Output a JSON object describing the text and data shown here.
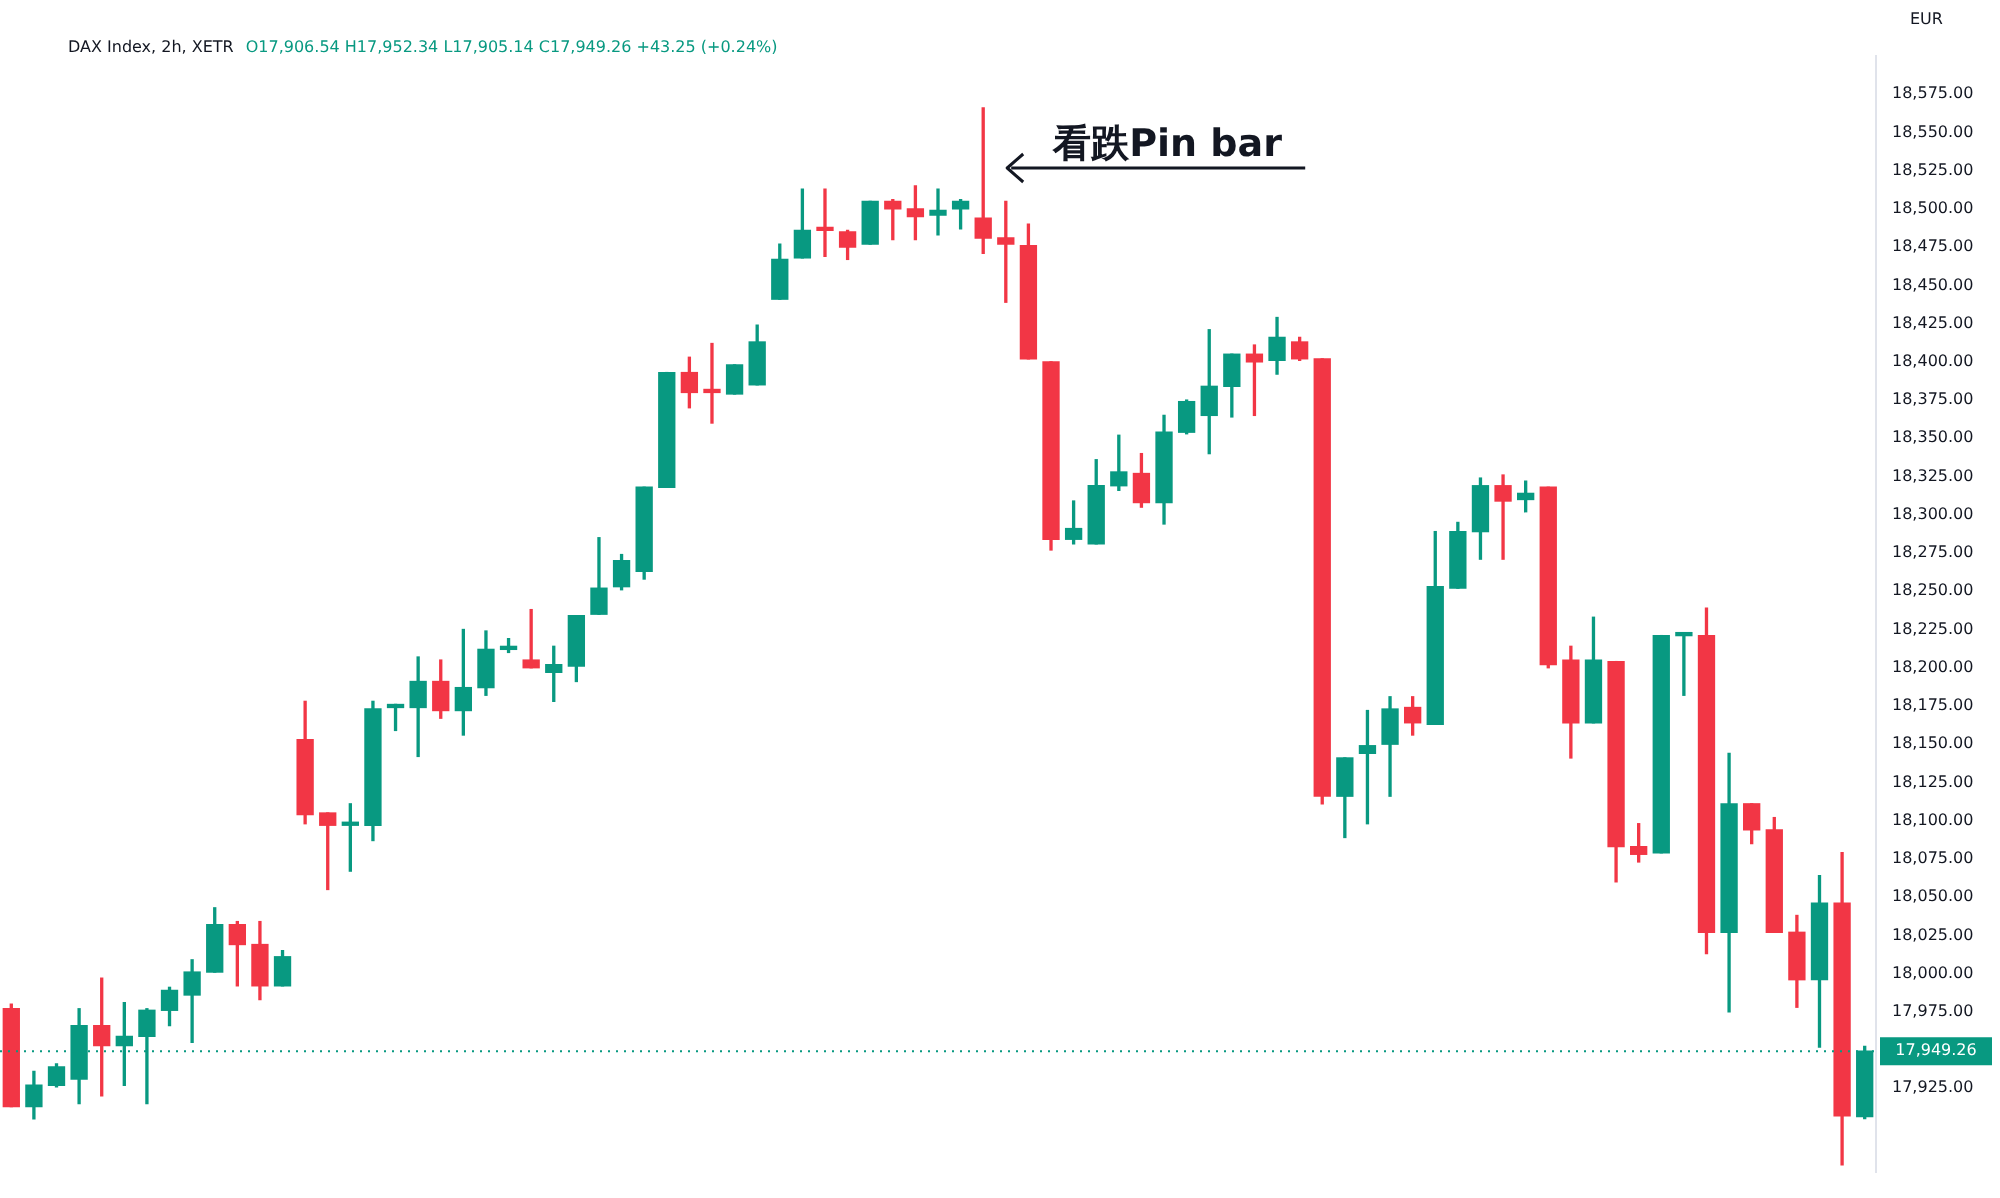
{
  "chart_data": {
    "type": "candlestick",
    "title": "DAX Index, 2h, XETR",
    "subtitle": "O17,906.54 H17,952.34 L17,905.14 C17,949.26 +43.25 (+0.24%)",
    "ylabel": "EUR",
    "categories": [
      null,
      null,
      null,
      null,
      null,
      null,
      null,
      null,
      null,
      null,
      null,
      null,
      null,
      null,
      null,
      null,
      null,
      null,
      null,
      null,
      null,
      null,
      null,
      null,
      null,
      null,
      null,
      null,
      null,
      null,
      null,
      null,
      null,
      null,
      null,
      null,
      null,
      null,
      null,
      null,
      null,
      null,
      null,
      null,
      null,
      null,
      null,
      null,
      null,
      null,
      null,
      null,
      null,
      null,
      null,
      null,
      null,
      null,
      null,
      null,
      null,
      null,
      null,
      null,
      null,
      null,
      null,
      null,
      null,
      null,
      null,
      null,
      null,
      null,
      null,
      null,
      null,
      null,
      null,
      null,
      null,
      null,
      null
    ],
    "ohlc": [
      [
        17977,
        17980,
        17913,
        17913
      ],
      [
        17913,
        17936,
        17905,
        17927
      ],
      [
        17927,
        17941,
        17926,
        17939
      ],
      [
        17931,
        17977,
        17915,
        17966
      ],
      [
        17966,
        17997,
        17920,
        17953
      ],
      [
        17953,
        17981,
        17927,
        17959
      ],
      [
        17959,
        17977,
        17915,
        17976
      ],
      [
        17976,
        17991,
        17966,
        17989
      ],
      [
        17986,
        18009,
        17955,
        18001
      ],
      [
        18001,
        18043,
        18001,
        18032
      ],
      [
        18032,
        18034,
        17992,
        18019
      ],
      [
        18019,
        18034,
        17983,
        17992
      ],
      [
        17992,
        18015,
        17992,
        18011
      ],
      [
        18153,
        18178,
        18098,
        18104
      ],
      [
        18105,
        18105,
        18055,
        18097
      ],
      [
        18097,
        18111,
        18067,
        18097
      ],
      [
        18097,
        18178,
        18087,
        18173
      ],
      [
        18174,
        18176,
        18159,
        18175
      ],
      [
        18174,
        18207,
        18142,
        18191
      ],
      [
        18191,
        18205,
        18167,
        18172
      ],
      [
        18172,
        18225,
        18156,
        18187
      ],
      [
        18187,
        18224,
        18182,
        18212
      ],
      [
        18212,
        18219,
        18210,
        18213
      ],
      [
        18205,
        18238,
        18200,
        18200
      ],
      [
        18197,
        18214,
        18178,
        18202
      ],
      [
        18201,
        18234,
        18191,
        18234
      ],
      [
        18235,
        18285,
        18235,
        18252
      ],
      [
        18253,
        18274,
        18251,
        18270
      ],
      [
        18263,
        18318,
        18258,
        18318
      ],
      [
        18318,
        18393,
        18318,
        18393
      ],
      [
        18393,
        18403,
        18370,
        18380
      ],
      [
        18380,
        18412,
        18360,
        18380
      ],
      [
        18379,
        18398,
        18379,
        18398
      ],
      [
        18385,
        18424,
        18385,
        18413
      ],
      [
        18441,
        18477,
        18441,
        18467
      ],
      [
        18468,
        18513,
        18468,
        18486
      ],
      [
        18486,
        18513,
        18469,
        18486
      ],
      [
        18485,
        18486,
        18467,
        18475
      ],
      [
        18477,
        18505,
        18477,
        18505
      ],
      [
        18505,
        18506,
        18480,
        18500
      ],
      [
        18500,
        18515,
        18480,
        18495
      ],
      [
        18496,
        18513,
        18483,
        18499
      ],
      [
        18500,
        18506,
        18487,
        18505
      ],
      [
        18494,
        18566,
        18471,
        18481
      ],
      [
        18481,
        18505,
        18439,
        18477
      ],
      [
        18476,
        18490,
        18402,
        18402
      ],
      [
        18400,
        18400,
        18277,
        18284
      ],
      [
        18284,
        18309,
        18281,
        18291
      ],
      [
        18281,
        18336,
        18281,
        18319
      ],
      [
        18319,
        18352,
        18316,
        18328
      ],
      [
        18327,
        18340,
        18305,
        18308
      ],
      [
        18308,
        18365,
        18294,
        18354
      ],
      [
        18354,
        18375,
        18353,
        18374
      ],
      [
        18365,
        18421,
        18340,
        18384
      ],
      [
        18384,
        18405,
        18364,
        18405
      ],
      [
        18405,
        18411,
        18365,
        18400
      ],
      [
        18401,
        18429,
        18392,
        18416
      ],
      [
        18413,
        18416,
        18401,
        18402
      ],
      [
        18402,
        18402,
        18111,
        18116
      ],
      [
        18116,
        18141,
        18089,
        18141
      ],
      [
        18144,
        18172,
        18098,
        18149
      ],
      [
        18150,
        18181,
        18116,
        18173
      ],
      [
        18174,
        18181,
        18156,
        18164
      ],
      [
        18163,
        18289,
        18163,
        18253
      ],
      [
        18252,
        18295,
        18252,
        18289
      ],
      [
        18289,
        18324,
        18271,
        18319
      ],
      [
        18319,
        18326,
        18271,
        18309
      ],
      [
        18310,
        18322,
        18302,
        18314
      ],
      [
        18318,
        18318,
        18200,
        18202
      ],
      [
        18205,
        18214,
        18141,
        18164
      ],
      [
        18164,
        18233,
        18164,
        18205
      ],
      [
        18204,
        18204,
        18060,
        18083
      ],
      [
        18083,
        18098,
        18073,
        18078
      ],
      [
        18079,
        18221,
        18079,
        18221
      ],
      [
        18221,
        18222,
        18182,
        18221
      ],
      [
        18221,
        18239,
        18013,
        18027
      ],
      [
        18027,
        18144,
        17975,
        18111
      ],
      [
        18111,
        18111,
        18085,
        18094
      ],
      [
        18094,
        18102,
        18027,
        18027
      ],
      [
        18027,
        18038,
        17978,
        17996
      ],
      [
        17996,
        18064,
        17952,
        18046
      ],
      [
        18046,
        18079,
        17875,
        17907
      ],
      [
        17906.54,
        17952.34,
        17905.14,
        17949.26
      ]
    ],
    "colors": [
      "#f23645",
      "#089981",
      "#089981",
      "#089981",
      "#f23645",
      "#089981",
      "#089981",
      "#089981",
      "#089981",
      "#089981",
      "#f23645",
      "#f23645",
      "#089981",
      "#f23645",
      "#f23645",
      "#089981",
      "#089981",
      "#089981",
      "#089981",
      "#f23645",
      "#089981",
      "#089981",
      "#089981",
      "#f23645",
      "#089981",
      "#089981",
      "#089981",
      "#089981",
      "#089981",
      "#089981",
      "#f23645",
      "#f23645",
      "#089981",
      "#089981",
      "#089981",
      "#089981",
      "#f23645",
      "#f23645",
      "#089981",
      "#f23645",
      "#f23645",
      "#089981",
      "#089981",
      "#f23645",
      "#f23645",
      "#f23645",
      "#f23645",
      "#089981",
      "#089981",
      "#089981",
      "#f23645",
      "#089981",
      "#089981",
      "#089981",
      "#089981",
      "#f23645",
      "#089981",
      "#f23645",
      "#f23645",
      "#089981",
      "#089981",
      "#089981",
      "#f23645",
      "#089981",
      "#089981",
      "#089981",
      "#f23645",
      "#089981",
      "#f23645",
      "#f23645",
      "#089981",
      "#f23645",
      "#f23645",
      "#089981",
      "#089981",
      "#f23645",
      "#089981",
      "#f23645",
      "#f23645",
      "#f23645",
      "#089981",
      "#f23645",
      "#089981"
    ],
    "ylim": [
      17870,
      18600
    ],
    "yticks": [
      {
        "value": 17925,
        "label": "17,925.00"
      },
      {
        "value": 17975,
        "label": "17,975.00"
      },
      {
        "value": 18000,
        "label": "18,000.00"
      },
      {
        "value": 18025,
        "label": "18,025.00"
      },
      {
        "value": 18050,
        "label": "18,050.00"
      },
      {
        "value": 18075,
        "label": "18,075.00"
      },
      {
        "value": 18100,
        "label": "18,100.00"
      },
      {
        "value": 18125,
        "label": "18,125.00"
      },
      {
        "value": 18150,
        "label": "18,150.00"
      },
      {
        "value": 18175,
        "label": "18,175.00"
      },
      {
        "value": 18200,
        "label": "18,200.00"
      },
      {
        "value": 18225,
        "label": "18,225.00"
      },
      {
        "value": 18250,
        "label": "18,250.00"
      },
      {
        "value": 18275,
        "label": "18,275.00"
      },
      {
        "value": 18300,
        "label": "18,300.00"
      },
      {
        "value": 18325,
        "label": "18,325.00"
      },
      {
        "value": 18350,
        "label": "18,350.00"
      },
      {
        "value": 18375,
        "label": "18,375.00"
      },
      {
        "value": 18400,
        "label": "18,400.00"
      },
      {
        "value": 18425,
        "label": "18,425.00"
      },
      {
        "value": 18450,
        "label": "18,450.00"
      },
      {
        "value": 18475,
        "label": "18,475.00"
      },
      {
        "value": 18500,
        "label": "18,500.00"
      },
      {
        "value": 18525,
        "label": "18,525.00"
      },
      {
        "value": 18550,
        "label": "18,550.00"
      },
      {
        "value": 18575,
        "label": "18,575.00"
      }
    ],
    "tick_labels": "y",
    "grid": false,
    "legend": false,
    "ref_lines": [
      {
        "axis": "y",
        "value": 17949.26,
        "label": "17,949.26",
        "color": "#089981",
        "line_style": "dotted"
      }
    ],
    "annotations": [
      "看跌Pin bar"
    ]
  }
}
